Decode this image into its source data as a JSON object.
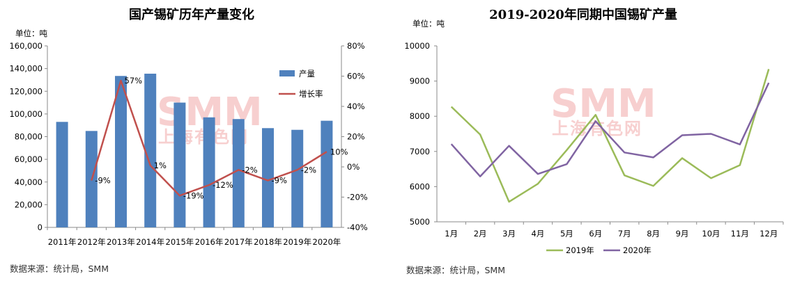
{
  "chart_data": [
    {
      "type": "bar+line",
      "title": "国产锡矿历年产量变化",
      "unit_label": "单位：吨",
      "categories": [
        "2011年",
        "2012年",
        "2013年",
        "2014年",
        "2015年",
        "2016年",
        "2017年",
        "2018年",
        "2019年",
        "2020年"
      ],
      "series": [
        {
          "name": "产量",
          "type": "bar",
          "axis": "left",
          "color": "#4f81bd",
          "values": [
            93000,
            85000,
            133500,
            135500,
            110000,
            97000,
            95500,
            87500,
            86000,
            94000
          ]
        },
        {
          "name": "增长率",
          "type": "line",
          "axis": "right",
          "color": "#c0504d",
          "values": [
            null,
            -9,
            57,
            1,
            -19,
            -12,
            -2,
            -9,
            -2,
            10
          ],
          "labels": [
            "",
            "-9%",
            "57%",
            "1%",
            "-19%",
            "-12%",
            "-2%",
            "-9%",
            "-2%",
            "10%"
          ]
        }
      ],
      "ylim_left": [
        0,
        160000
      ],
      "yticks_left": [
        "0",
        "20,000",
        "40,000",
        "60,000",
        "80,000",
        "100,000",
        "120,000",
        "140,000",
        "160,000"
      ],
      "ylim_right": [
        -40,
        80
      ],
      "yticks_right": [
        "-40%",
        "-20%",
        "0%",
        "20%",
        "40%",
        "60%",
        "80%"
      ],
      "legend": "right-inside",
      "grid": false,
      "source": "数据来源：统计局，SMM",
      "watermark": [
        "SMM",
        "上海有色网"
      ]
    },
    {
      "type": "line",
      "title": "2019-2020年同期中国锡矿产量",
      "unit_label": "单位：吨",
      "categories": [
        "1月",
        "2月",
        "3月",
        "4月",
        "5月",
        "6月",
        "7月",
        "8月",
        "9月",
        "10月",
        "11月",
        "12月"
      ],
      "series": [
        {
          "name": "2019年",
          "color": "#9bbb59",
          "values": [
            8270,
            7480,
            5570,
            6080,
            7040,
            8040,
            6320,
            6020,
            6810,
            6240,
            6610,
            9340
          ]
        },
        {
          "name": "2020年",
          "color": "#8064a2",
          "values": [
            7210,
            6290,
            7160,
            6360,
            6640,
            7860,
            6970,
            6830,
            7460,
            7500,
            7200,
            8950
          ]
        }
      ],
      "ylim": [
        5000,
        10000
      ],
      "yticks": [
        "5000",
        "6000",
        "7000",
        "8000",
        "9000",
        "10000"
      ],
      "legend": "bottom",
      "grid": false,
      "source": "数据来源：统计局，SMM",
      "watermark": [
        "SMM",
        "上海有色网"
      ]
    }
  ]
}
